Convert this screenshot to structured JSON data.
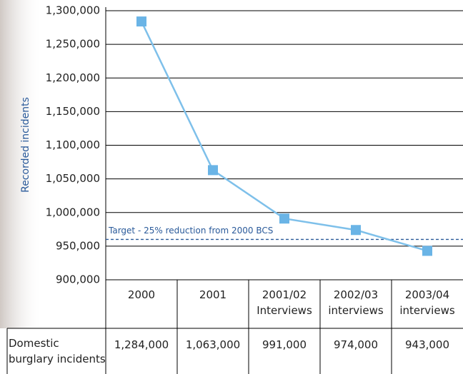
{
  "chart_data": {
    "type": "line",
    "y_label": "Recorded incidents",
    "categories": [
      "2000",
      "2001",
      "2001/02 Interviews",
      "2002/03 interviews",
      "2003/04 interviews"
    ],
    "values": [
      1284000,
      1063000,
      991000,
      974000,
      943000
    ],
    "value_labels": [
      "1,284,000",
      "1,063,000",
      "991,000",
      "974,000",
      "943,000"
    ],
    "row_label": "Domestic burglary incidents",
    "color": "#7ec0ea",
    "marker_color": "#6ab4e6",
    "ylim": [
      900000,
      1300000
    ],
    "yticks": [
      {
        "value": 900000,
        "label": "900,000"
      },
      {
        "value": 950000,
        "label": "950,000"
      },
      {
        "value": 1000000,
        "label": "1,000,000"
      },
      {
        "value": 1050000,
        "label": "1,050,000"
      },
      {
        "value": 1100000,
        "label": "1,100,000"
      },
      {
        "value": 1150000,
        "label": "1,150,000"
      },
      {
        "value": 1200000,
        "label": "1,200,000"
      },
      {
        "value": 1250000,
        "label": "1,250,000"
      },
      {
        "value": 1300000,
        "label": "1,300,000"
      }
    ],
    "grid": true,
    "target": {
      "value": 960000,
      "label": "Target - 25% reduction from 2000 BCS",
      "color": "#2a5a9a"
    }
  }
}
